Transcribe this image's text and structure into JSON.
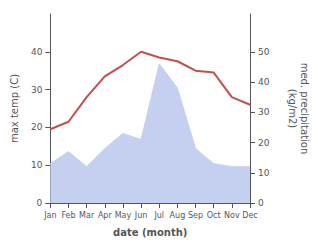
{
  "chart_data": {
    "type": "line",
    "xlabel": "date (month)",
    "ylabel": "max temp (C)",
    "y2label": "med. precipitation\n(kg/m2)",
    "categories": [
      "Jan",
      "Feb",
      "Mar",
      "Apr",
      "May",
      "Jun",
      "Jul",
      "Aug",
      "Sep",
      "Oct",
      "Nov",
      "Dec"
    ],
    "series": [
      {
        "type": "area",
        "axis": "y2",
        "color": "#c5cff0",
        "values": [
          13,
          17,
          12,
          18,
          23,
          21,
          46,
          38,
          18,
          13,
          12,
          12
        ]
      },
      {
        "type": "line",
        "color": "#c0504d",
        "values": [
          19.5,
          21.5,
          28.0,
          33.5,
          36.5,
          40.0,
          38.5,
          37.5,
          35.0,
          34.5,
          28.0,
          26.0
        ]
      }
    ],
    "ylim": [
      0,
      50
    ],
    "yticks": [
      0,
      10,
      20,
      30,
      40
    ],
    "y2lim": [
      0,
      62.5
    ],
    "y2ticks": [
      0,
      10,
      20,
      30,
      40,
      50
    ],
    "grid": false
  }
}
